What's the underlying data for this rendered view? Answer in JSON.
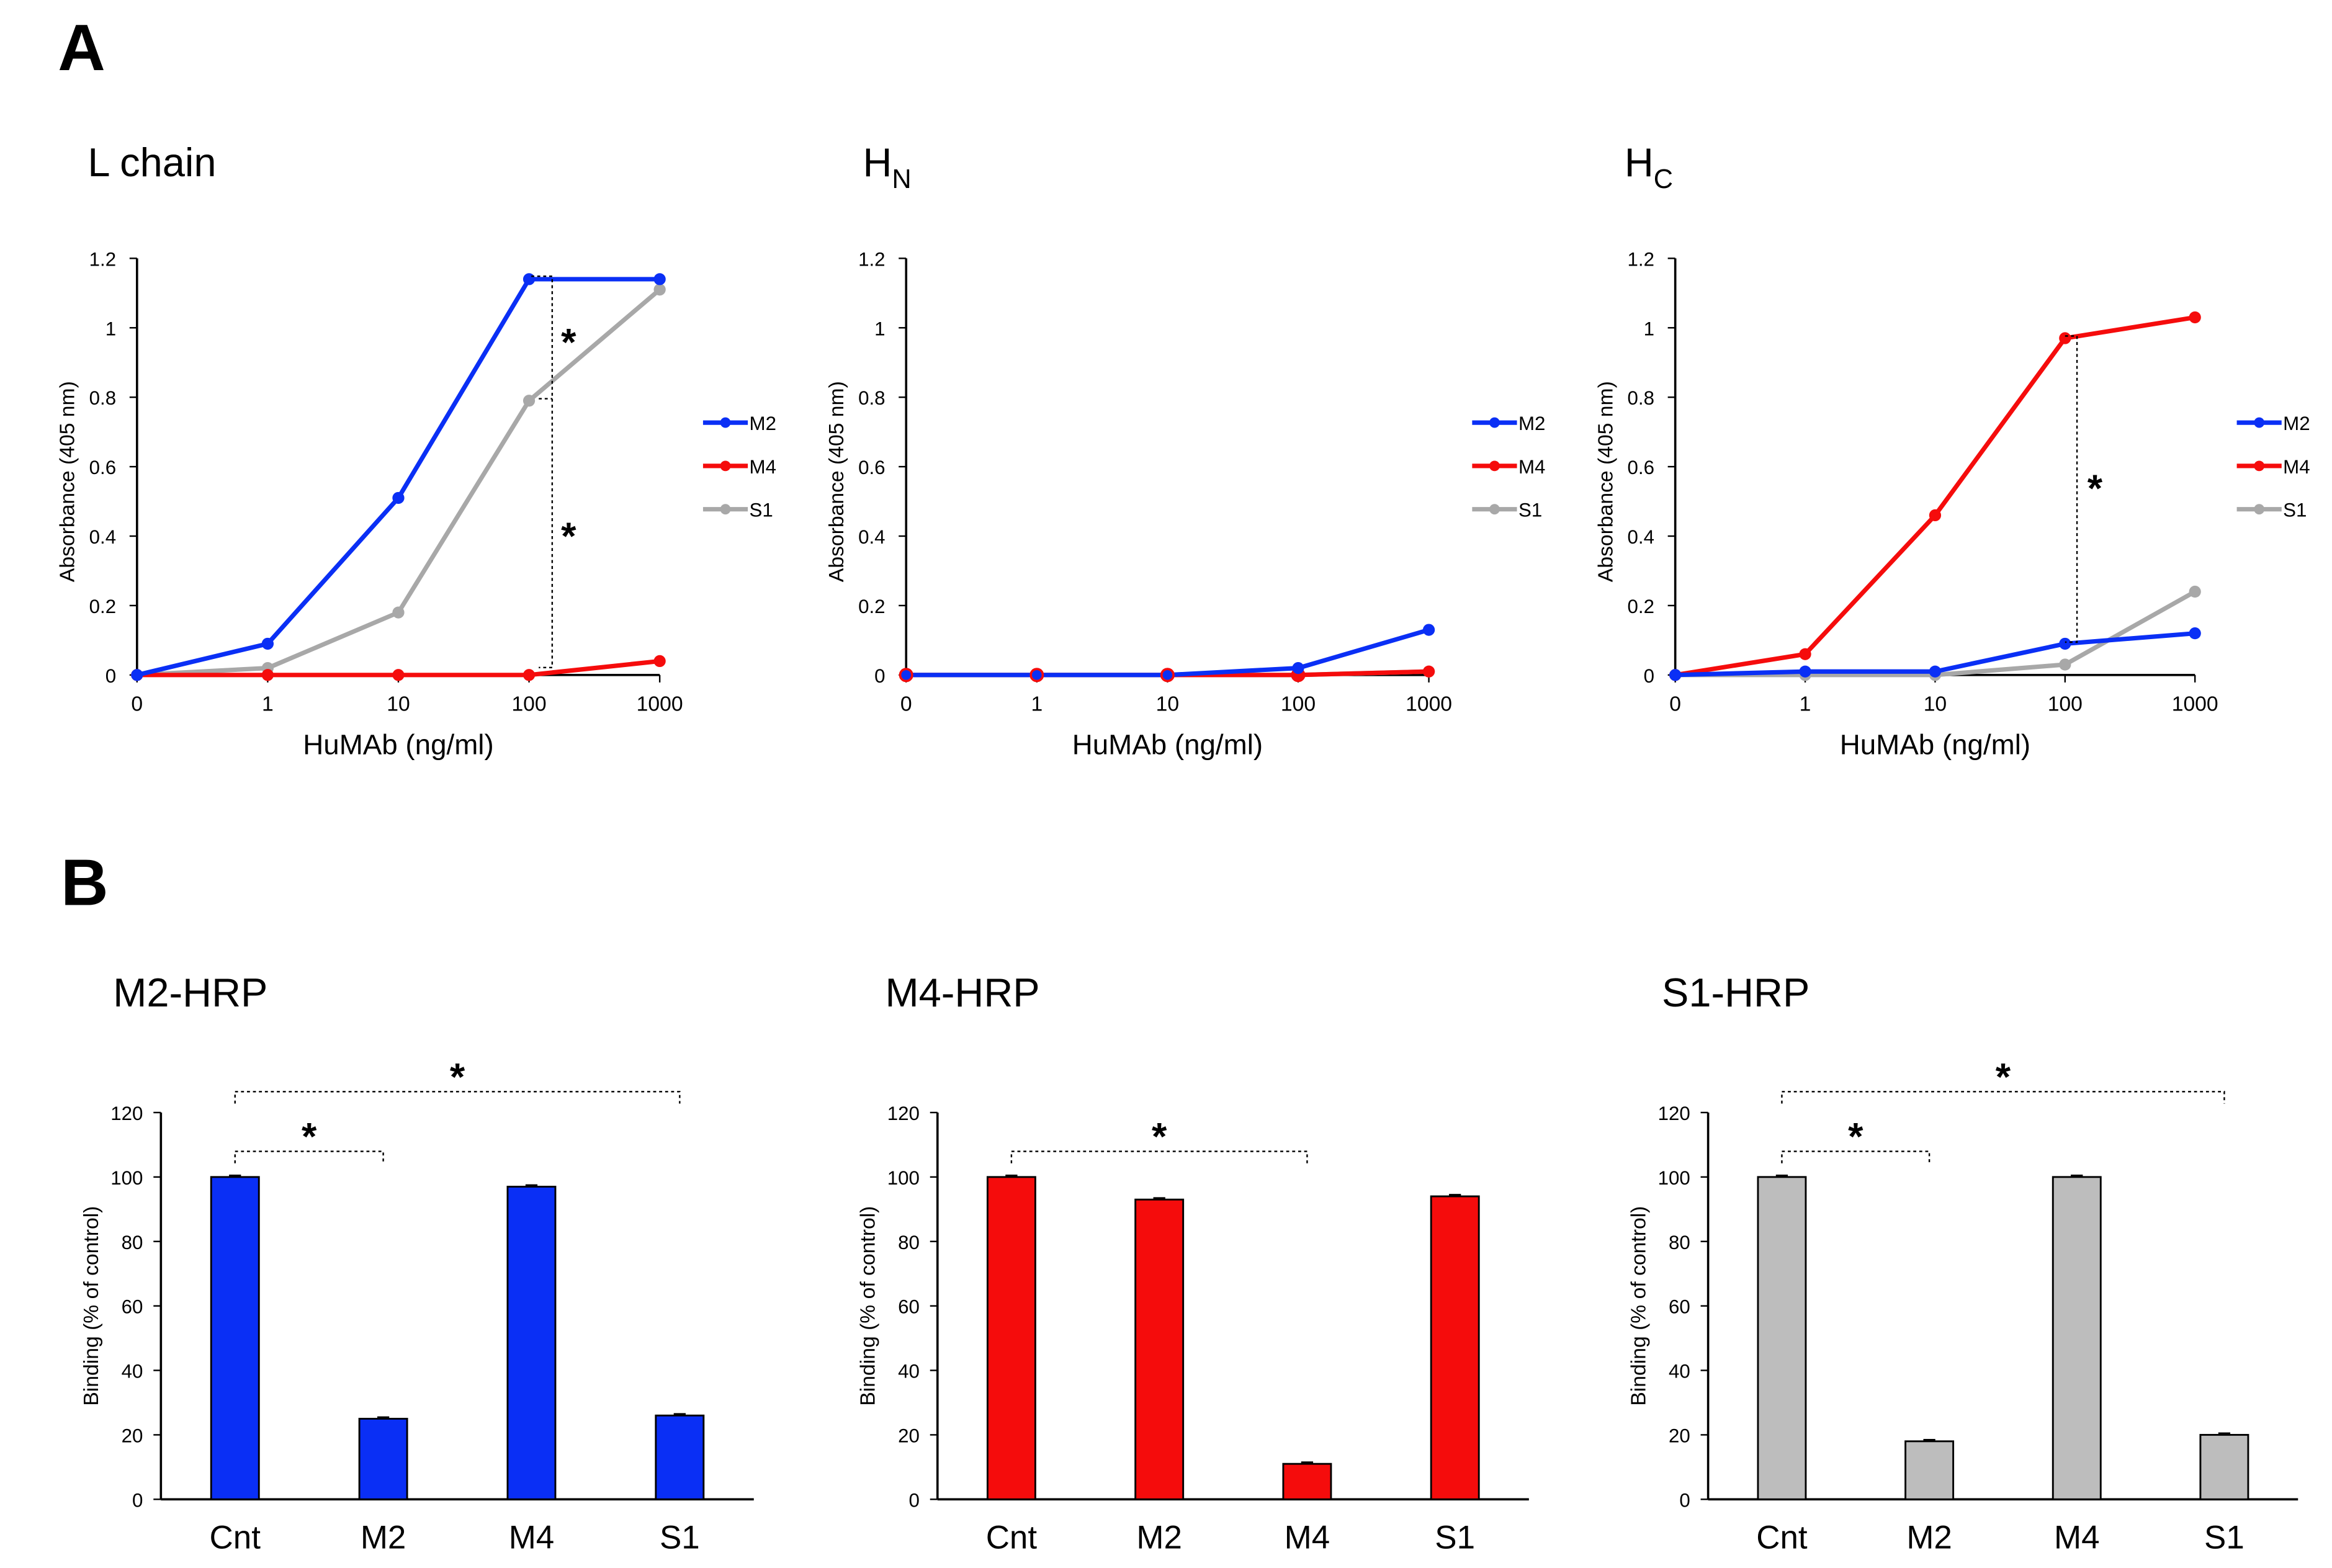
{
  "panel_labels": {
    "a": "A",
    "b": "B"
  },
  "colors": {
    "M2": "#0a2ff5",
    "M4": "#f50c0c",
    "S1": "#a8a8a8",
    "S1_bar": "#bdbdbd"
  },
  "significance_mark": "*",
  "chart_data": [
    {
      "type": "line",
      "panel": "A",
      "title": "L chain",
      "xlabel": "HuMAb (ng/ml)",
      "ylabel": "Absorbance (405 nm)",
      "categories": [
        "0",
        "1",
        "10",
        "100",
        "1000"
      ],
      "yticks": [
        "0",
        "0.2",
        "0.4",
        "0.6",
        "0.8",
        "1",
        "1.2"
      ],
      "ylim": [
        0,
        1.2
      ],
      "legend": [
        "M2",
        "M4",
        "S1"
      ],
      "legend_placement": "right",
      "series": [
        {
          "name": "M2",
          "values": [
            0,
            0.09,
            0.51,
            1.14,
            1.14
          ]
        },
        {
          "name": "M4",
          "values": [
            0,
            0,
            0,
            0,
            0.04
          ]
        },
        {
          "name": "S1",
          "values": [
            0,
            0.02,
            0.18,
            0.79,
            1.11
          ]
        }
      ],
      "annotations": [
        "* (M2 vs S1 at 100)",
        "* (M2 vs M4 at 100)"
      ]
    },
    {
      "type": "line",
      "panel": "A",
      "title": "H",
      "title_sub": "N",
      "xlabel": "HuMAb (ng/ml)",
      "ylabel": "Absorbance (405 nm)",
      "categories": [
        "0",
        "1",
        "10",
        "100",
        "1000"
      ],
      "yticks": [
        "0",
        "0.2",
        "0.4",
        "0.6",
        "0.8",
        "1",
        "1.2"
      ],
      "ylim": [
        0,
        1.2
      ],
      "legend": [
        "M2",
        "M4",
        "S1"
      ],
      "legend_placement": "right",
      "series": [
        {
          "name": "M2",
          "values": [
            0,
            0,
            0,
            0.02,
            0.13
          ]
        },
        {
          "name": "M4",
          "values": [
            0,
            0,
            0,
            0,
            0.01
          ]
        },
        {
          "name": "S1",
          "values": [
            0,
            0,
            0,
            0,
            0.01
          ]
        }
      ]
    },
    {
      "type": "line",
      "panel": "A",
      "title": "H",
      "title_sub": "C",
      "xlabel": "HuMAb (ng/ml)",
      "ylabel": "Absorbance (405 nm)",
      "categories": [
        "0",
        "1",
        "10",
        "100",
        "1000"
      ],
      "yticks": [
        "0",
        "0.2",
        "0.4",
        "0.6",
        "0.8",
        "1",
        "1.2"
      ],
      "ylim": [
        0,
        1.2
      ],
      "legend": [
        "M2",
        "M4",
        "S1"
      ],
      "legend_placement": "right",
      "series": [
        {
          "name": "M2",
          "values": [
            0,
            0.01,
            0.01,
            0.09,
            0.12
          ]
        },
        {
          "name": "M4",
          "values": [
            0,
            0.06,
            0.46,
            0.97,
            1.03
          ]
        },
        {
          "name": "S1",
          "values": [
            0,
            0,
            0,
            0.03,
            0.24
          ]
        }
      ],
      "annotations": [
        "* (M4 vs M2 at 100)"
      ]
    },
    {
      "type": "bar",
      "panel": "B",
      "title": "M2-HRP",
      "color": "M2",
      "ylabel": "Binding (% of control)",
      "categories": [
        "Cnt",
        "M2",
        "M4",
        "S1"
      ],
      "values": [
        100,
        25,
        97,
        26
      ],
      "yticks": [
        "0",
        "20",
        "40",
        "60",
        "80",
        "100",
        "120"
      ],
      "ylim": [
        0,
        120
      ],
      "brackets": [
        [
          "Cnt",
          "S1"
        ],
        [
          "Cnt",
          "M2"
        ]
      ]
    },
    {
      "type": "bar",
      "panel": "B",
      "title": "M4-HRP",
      "color": "M4",
      "ylabel": "Binding (% of control)",
      "categories": [
        "Cnt",
        "M2",
        "M4",
        "S1"
      ],
      "values": [
        100,
        93,
        11,
        94
      ],
      "yticks": [
        "0",
        "20",
        "40",
        "60",
        "80",
        "100",
        "120"
      ],
      "ylim": [
        0,
        120
      ],
      "brackets": [
        [
          "Cnt",
          "M4"
        ]
      ]
    },
    {
      "type": "bar",
      "panel": "B",
      "title": "S1-HRP",
      "color": "S1_bar",
      "ylabel": "Binding (% of control)",
      "categories": [
        "Cnt",
        "M2",
        "M4",
        "S1"
      ],
      "values": [
        100,
        18,
        100,
        20
      ],
      "yticks": [
        "0",
        "20",
        "40",
        "60",
        "80",
        "100",
        "120"
      ],
      "ylim": [
        0,
        120
      ],
      "brackets": [
        [
          "Cnt",
          "S1"
        ],
        [
          "Cnt",
          "M2"
        ]
      ]
    }
  ]
}
